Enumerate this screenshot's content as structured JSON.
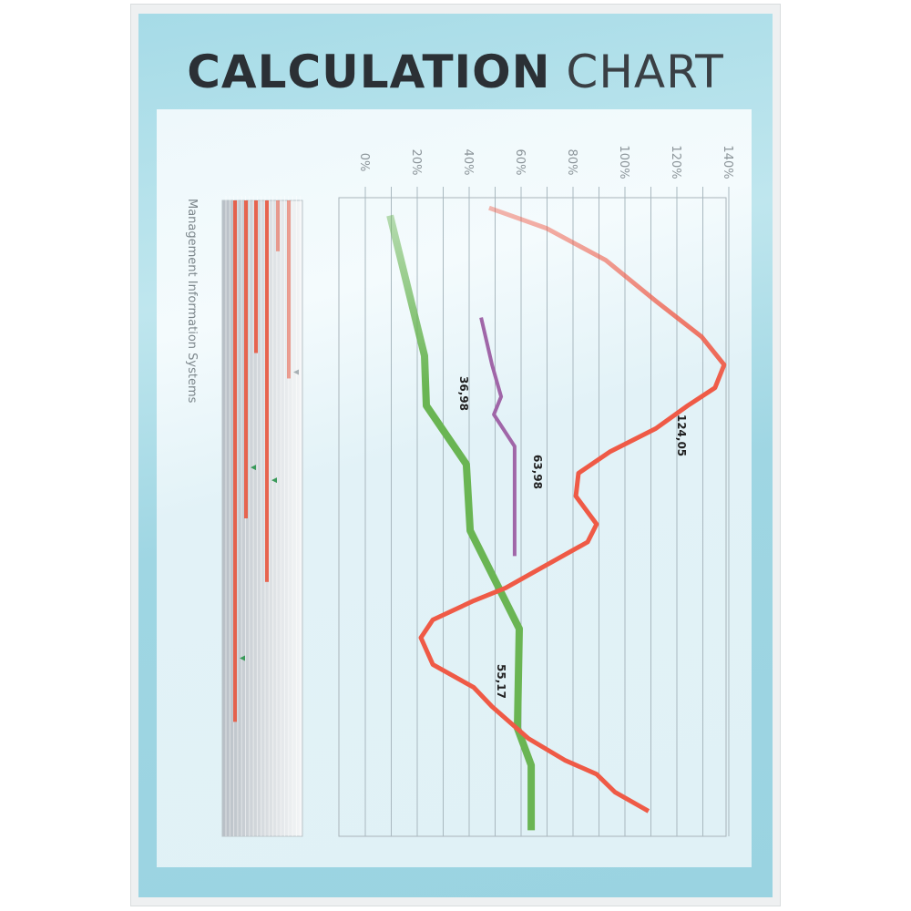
{
  "title": {
    "bold": "CALCULATION",
    "regular": "CHART"
  },
  "chart_data": [
    {
      "type": "line",
      "orientation": "rotated-90",
      "title": "",
      "value_axis": {
        "ticks": [
          "0%",
          "20%",
          "40%",
          "60%",
          "80%",
          "100%",
          "120%",
          "140%"
        ],
        "range": [
          -10,
          140
        ],
        "grid": true
      },
      "category_axis": {
        "range": [
          0,
          50
        ],
        "labels": []
      },
      "series": [
        {
          "color": "#6ab553",
          "fade_start": true,
          "points": [
            [
              1.4,
              9.5
            ],
            [
              12.4,
              22.8
            ],
            [
              16.3,
              23.5
            ],
            [
              20.9,
              38.9
            ],
            [
              26.1,
              40.4
            ],
            [
              33.8,
              59.3
            ],
            [
              41.6,
              58.6
            ],
            [
              44.5,
              63.9
            ],
            [
              49.6,
              63.9
            ]
          ]
        },
        {
          "color": "#ef5a46",
          "fade_start": true,
          "points": [
            [
              0.8,
              47.7
            ],
            [
              2.4,
              69.8
            ],
            [
              4.9,
              92.6
            ],
            [
              8.1,
              111.9
            ],
            [
              10.9,
              129.5
            ],
            [
              13.1,
              138.2
            ],
            [
              14.9,
              134.7
            ],
            [
              16.3,
              124.2
            ],
            [
              18.1,
              111.9
            ],
            [
              19.9,
              94.4
            ],
            [
              21.6,
              82.1
            ],
            [
              23.4,
              81.1
            ],
            [
              25.6,
              89.1
            ],
            [
              27,
              85.6
            ],
            [
              28.8,
              69.8
            ],
            [
              30.6,
              54
            ],
            [
              31.6,
              41.8
            ],
            [
              33.1,
              26
            ],
            [
              34.5,
              21.4
            ],
            [
              36.6,
              26
            ],
            [
              38.4,
              41.8
            ],
            [
              39.9,
              48.8
            ],
            [
              42.4,
              62.8
            ],
            [
              44.1,
              76.8
            ],
            [
              45.2,
              89.1
            ],
            [
              46.6,
              96.1
            ],
            [
              48.1,
              109.1
            ]
          ]
        },
        {
          "color": "#a066a8",
          "fade_start": false,
          "points": [
            [
              9.4,
              44.6
            ],
            [
              13.1,
              48.8
            ],
            [
              15.6,
              52.3
            ],
            [
              17,
              49.5
            ],
            [
              19.5,
              57.5
            ],
            [
              28.1,
              57.5
            ]
          ]
        }
      ],
      "data_labels": [
        "36,98",
        "63,98",
        "124,05",
        "55,17"
      ]
    },
    {
      "type": "bar",
      "orientation": "vertical-down",
      "label": "Management Information Systems",
      "bar_color": "#e8573f",
      "values": [
        0.82,
        0.5,
        0.24,
        0.6,
        0.08,
        0.28
      ],
      "markers": [
        {
          "bar": 1,
          "value": 0.42,
          "color": "#3a9a5a"
        },
        {
          "bar": 3,
          "value": 0.44,
          "color": "#3a9a5a"
        },
        {
          "bar": 0,
          "value": 0.72,
          "color": "#3a9a5a"
        },
        {
          "bar": 5,
          "value": 0.27,
          "color": "#a7b0b4"
        }
      ]
    }
  ]
}
